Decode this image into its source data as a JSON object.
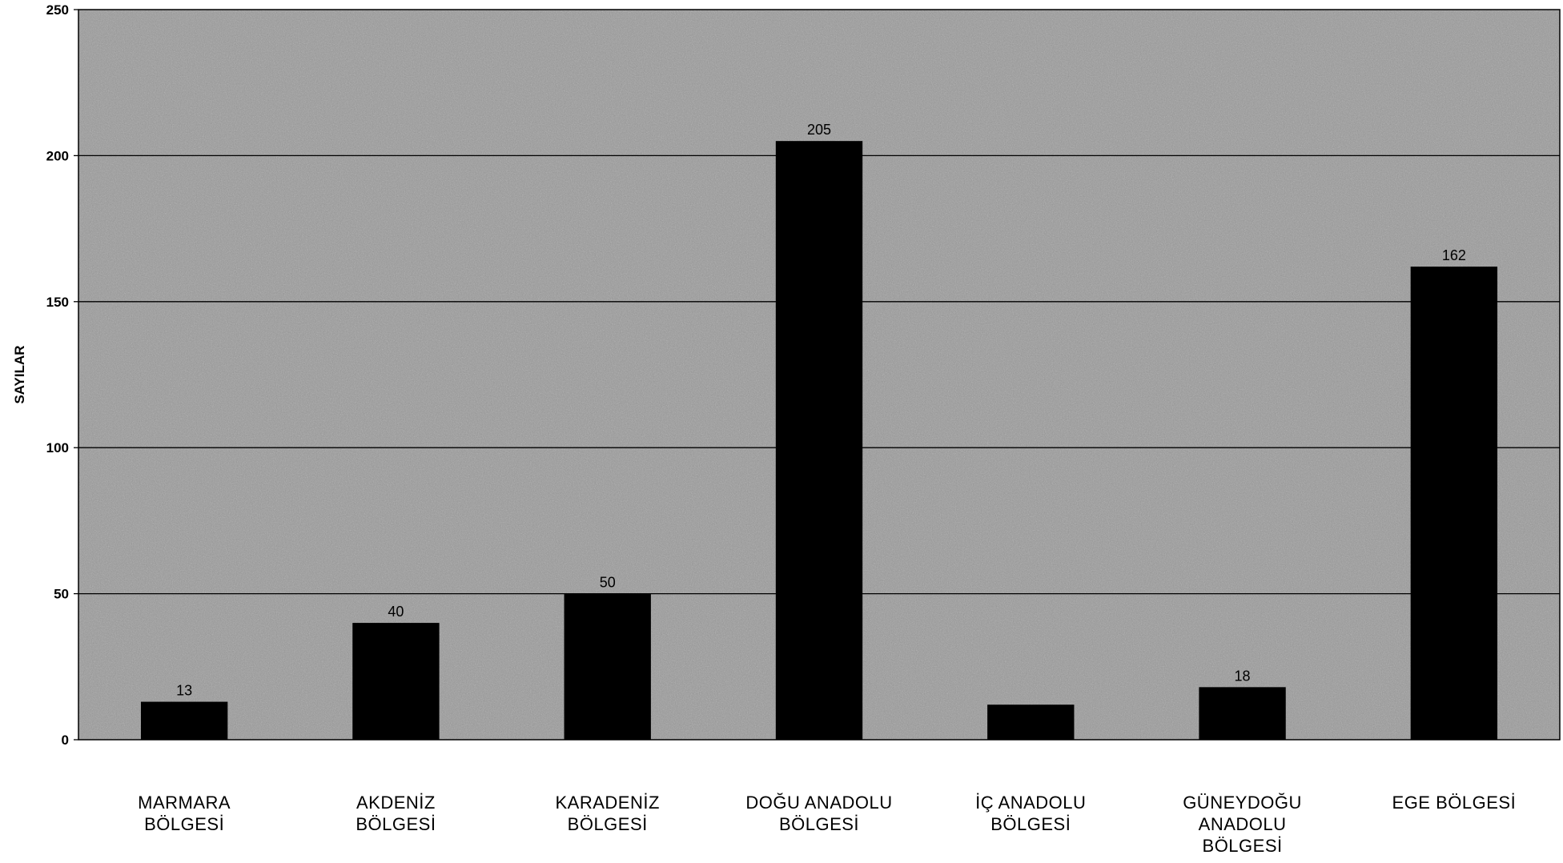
{
  "chart_data": {
    "type": "bar",
    "title": "",
    "xlabel": "",
    "ylabel": "SAYILAR",
    "ylim": [
      0,
      250
    ],
    "yticks": [
      0,
      50,
      100,
      150,
      200,
      250
    ],
    "grid": true,
    "legend": "none",
    "categories": [
      [
        "MARMARA",
        "BÖLGESİ"
      ],
      [
        "AKDENİZ",
        "BÖLGESİ"
      ],
      [
        "KARADENİZ",
        "BÖLGESİ"
      ],
      [
        "DOĞU ANADOLU",
        "BÖLGESİ"
      ],
      [
        "İÇ ANADOLU",
        "BÖLGESİ"
      ],
      [
        "GÜNEYDOĞU",
        "ANADOLU",
        "BÖLGESİ"
      ],
      [
        "EGE BÖLGESİ"
      ]
    ],
    "values": [
      13,
      40,
      50,
      205,
      12,
      18,
      162
    ],
    "data_labels": [
      "13",
      "40",
      "50",
      "205",
      "",
      "18",
      "162"
    ],
    "colors": {
      "plot_background": "#9a9a9a",
      "bar": "#000000",
      "gridline": "#000000",
      "page_background": "#ffffff"
    }
  }
}
